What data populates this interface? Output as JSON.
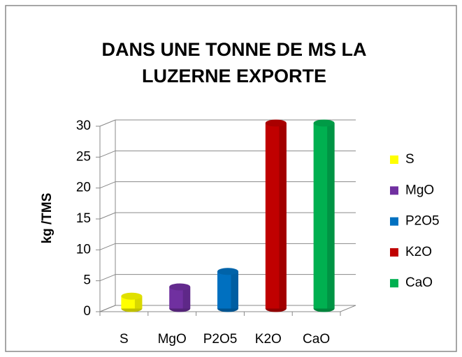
{
  "chart_data": {
    "type": "bar",
    "title": "DANS UNE TONNE DE MS LA LUZERNE EXPORTE",
    "y_label": "kg /TMS",
    "categories": [
      "S",
      "MgO",
      "P2O5",
      "K2O",
      "CaO"
    ],
    "values": [
      2,
      3.5,
      6,
      30,
      30
    ],
    "colors": [
      "#ffff00",
      "#7030a0",
      "#0070c0",
      "#c00000",
      "#00b050"
    ],
    "ylim": [
      0,
      30
    ],
    "yticks": [
      0,
      5,
      10,
      15,
      20,
      25,
      30
    ],
    "grid": true,
    "legend": "right"
  }
}
